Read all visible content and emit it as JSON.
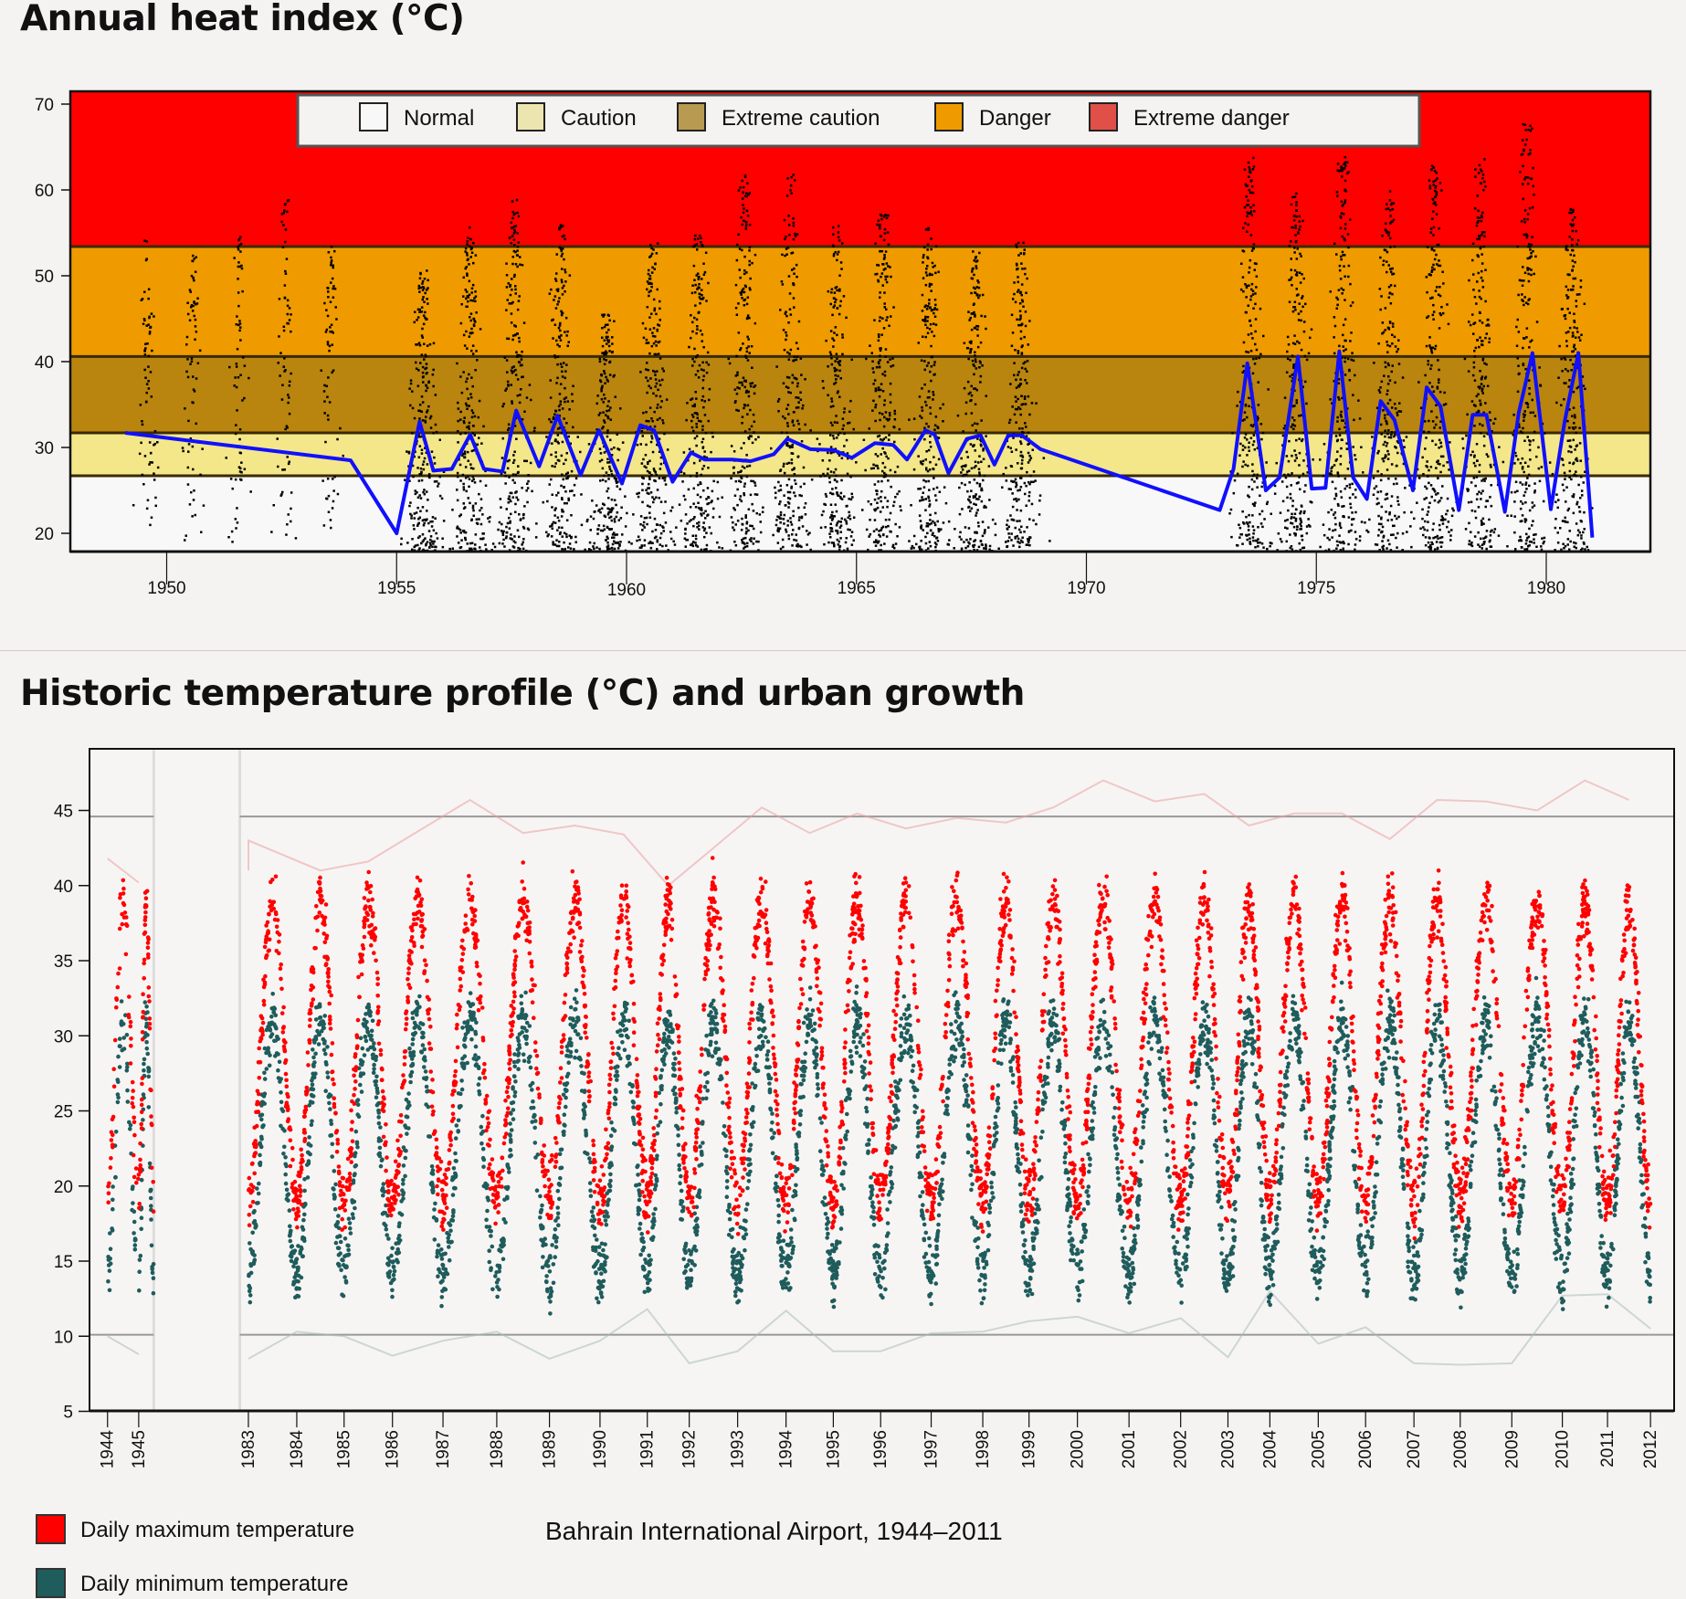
{
  "colors": {
    "background": "#f5f3f1",
    "line": "#1010ff",
    "scatter_top": "#000000",
    "max_temp": "#ff0000",
    "min_temp": "#1f5c5c"
  },
  "chart_data": [
    {
      "type": "scatter",
      "title": "Annual heat index (°C)",
      "xlabel": "",
      "ylabel": "",
      "xlim": [
        1947.9,
        1982.3
      ],
      "ylim": [
        17.9,
        71.5
      ],
      "x_ticks": [
        "1950",
        "1955",
        "1960",
        "1965",
        "1970",
        "1975",
        "1980"
      ],
      "y_ticks": [
        "20",
        "30",
        "40",
        "50",
        "60",
        "70"
      ],
      "grid": false,
      "legend_position": "top",
      "bands": [
        {
          "name": "Normal",
          "from": 17.9,
          "to": 26.7,
          "color": "#f8f8f8",
          "swatch": "#f8f8f8"
        },
        {
          "name": "Caution",
          "from": 26.7,
          "to": 31.7,
          "color": "#f4e78a",
          "swatch": "#ece5b0"
        },
        {
          "name": "Extreme caution",
          "from": 31.7,
          "to": 40.6,
          "color": "#b9850e",
          "swatch": "#b89a50"
        },
        {
          "name": "Danger",
          "from": 40.6,
          "to": 53.4,
          "color": "#ef9b00",
          "swatch": "#ef9b00"
        },
        {
          "name": "Extreme danger",
          "from": 53.4,
          "to": 71.5,
          "color": "#ff0000",
          "swatch": "#e05048"
        }
      ],
      "daily_points_yearly_peaks": [
        {
          "year": 1949,
          "peak": 55
        },
        {
          "year": 1950,
          "peak": 53
        },
        {
          "year": 1951,
          "peak": 55
        },
        {
          "year": 1952,
          "peak": 60
        },
        {
          "year": 1953,
          "peak": 54
        },
        {
          "year": 1955,
          "peak": 51
        },
        {
          "year": 1956,
          "peak": 56
        },
        {
          "year": 1957,
          "peak": 59
        },
        {
          "year": 1958,
          "peak": 57
        },
        {
          "year": 1959,
          "peak": 46
        },
        {
          "year": 1960,
          "peak": 54
        },
        {
          "year": 1961,
          "peak": 55
        },
        {
          "year": 1962,
          "peak": 62
        },
        {
          "year": 1963,
          "peak": 62
        },
        {
          "year": 1964,
          "peak": 56
        },
        {
          "year": 1965,
          "peak": 58
        },
        {
          "year": 1966,
          "peak": 56
        },
        {
          "year": 1967,
          "peak": 53
        },
        {
          "year": 1968,
          "peak": 54
        },
        {
          "year": 1973,
          "peak": 64
        },
        {
          "year": 1974,
          "peak": 60
        },
        {
          "year": 1975,
          "peak": 64
        },
        {
          "year": 1976,
          "peak": 60
        },
        {
          "year": 1977,
          "peak": 63
        },
        {
          "year": 1978,
          "peak": 64
        },
        {
          "year": 1979,
          "peak": 68
        },
        {
          "year": 1980,
          "peak": 58
        }
      ],
      "line_series": {
        "x": [
          1949.1,
          1954,
          1955,
          1955.5,
          1955.8,
          1956.2,
          1956.6,
          1956.9,
          1957.3,
          1957.6,
          1958.1,
          1958.5,
          1959,
          1959.4,
          1959.9,
          1960.3,
          1960.6,
          1961,
          1961.4,
          1961.7,
          1962.3,
          1962.7,
          1963.2,
          1963.5,
          1964,
          1964.5,
          1964.9,
          1965.4,
          1965.8,
          1966.1,
          1966.5,
          1966.7,
          1967,
          1967.4,
          1967.7,
          1968,
          1968.3,
          1968.6,
          1969,
          1972.9,
          1973.2,
          1973.5,
          1973.9,
          1974.2,
          1974.6,
          1974.9,
          1975.2,
          1975.5,
          1975.8,
          1976.1,
          1976.4,
          1976.7,
          1977.1,
          1977.4,
          1977.7,
          1978.1,
          1978.4,
          1978.7,
          1979.1,
          1979.4,
          1979.7,
          1980.1,
          1980.4,
          1980.7,
          1981
        ],
        "y": [
          31.7,
          28.5,
          20,
          33,
          27.3,
          27.5,
          31.5,
          27.5,
          27.2,
          34.3,
          27.8,
          33.7,
          26.8,
          32,
          25.8,
          32.6,
          32,
          26,
          29.4,
          28.6,
          28.6,
          28.4,
          29.2,
          31,
          29.8,
          29.7,
          28.8,
          30.5,
          30.3,
          28.6,
          32,
          31.5,
          27,
          31,
          31.4,
          28,
          31.4,
          31.4,
          29.8,
          22.7,
          27.5,
          39.8,
          25,
          26.5,
          40.6,
          25.2,
          25.3,
          41.2,
          26.5,
          24,
          35.4,
          33.2,
          25,
          37,
          34.8,
          22.7,
          33.8,
          33.8,
          22.5,
          34,
          41,
          22.8,
          33,
          41,
          19.5
        ]
      }
    },
    {
      "type": "scatter",
      "title": "Historic temperature profile (°C) and urban growth",
      "subtitle": "Bahrain International Airport, 1944–2011",
      "xlabel": "",
      "ylabel": "",
      "ylim": [
        5,
        49.1
      ],
      "y_ticks": [
        "5",
        "10",
        "15",
        "20",
        "25",
        "30",
        "35",
        "40",
        "45"
      ],
      "x_ticks": [
        "1944",
        "1945",
        "1983",
        "1984",
        "1985",
        "1986",
        "1987",
        "1988",
        "1989",
        "1990",
        "1991",
        "1992",
        "1993",
        "1994",
        "1995",
        "1996",
        "1997",
        "1998",
        "1999",
        "2000",
        "2001",
        "2002",
        "2003",
        "2004",
        "2005",
        "2006",
        "2007",
        "2008",
        "2009",
        "2010",
        "2011",
        "2012"
      ],
      "grid": false,
      "legend_position": "bottom-left",
      "reference_lines": [
        44.6,
        10.1
      ],
      "series": [
        {
          "name": "Daily maximum temperature",
          "color": "#ff0000",
          "seasonal_low": 19,
          "seasonal_high": 39
        },
        {
          "name": "Daily minimum temperature",
          "color": "#1f5c5c",
          "seasonal_low": 14,
          "seasonal_high": 31
        }
      ],
      "annual_max_envelope": [
        41.8,
        40.2,
        41,
        43,
        41,
        41.6,
        43.6,
        45.7,
        43.5,
        44,
        43.4,
        40,
        42.5,
        45.2,
        43.5,
        44.8,
        43.8,
        44.5,
        44.2,
        45.2,
        47,
        45.6,
        46.1,
        44,
        44.8,
        44.8,
        43.1,
        45.7,
        45.6,
        45,
        47,
        45.7
      ],
      "annual_min_envelope": [
        10,
        8.8,
        8.5,
        10.3,
        10,
        8.7,
        9.7,
        10.3,
        8.5,
        9.7,
        11.8,
        8.2,
        9,
        11.7,
        9,
        9,
        10.2,
        10.3,
        11,
        11.3,
        10.2,
        11.2,
        8.6,
        13,
        9.5,
        10.6,
        8.2,
        8.1,
        8.2,
        12.7,
        12.8,
        10.5
      ]
    }
  ]
}
